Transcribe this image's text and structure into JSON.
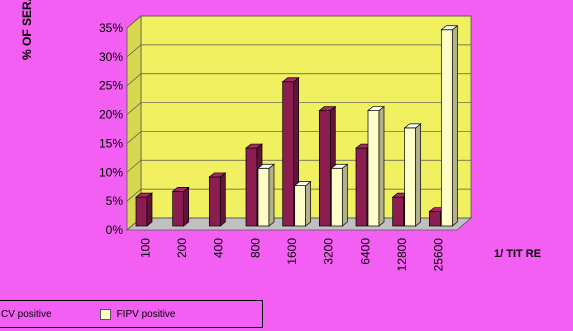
{
  "chart_data": {
    "type": "bar",
    "categories": [
      "100",
      "200",
      "400",
      "800",
      "1600",
      "3200",
      "6400",
      "12800",
      "25600"
    ],
    "series": [
      {
        "name": "FCV positive",
        "values": [
          5,
          6,
          8.5,
          13.5,
          25,
          20,
          13.5,
          5,
          2.5
        ],
        "color": "#8b1d50"
      },
      {
        "name": "FIPV positive",
        "values": [
          0,
          0,
          0,
          10,
          7,
          10,
          20,
          17,
          34
        ],
        "color": "#fffdc8"
      }
    ],
    "y_ticks": [
      "0%",
      "5%",
      "10%",
      "15%",
      "20%",
      "25%",
      "30%",
      "35%"
    ],
    "ylim": [
      0,
      35
    ],
    "ylabel": "% OF SERA",
    "xlabel": "1/ TIT RE",
    "legend_labels": [
      "CV positive",
      "FIPV positive"
    ],
    "legend_position": "bottom-left",
    "grid": true
  },
  "colors": {
    "background": "#f35ff3",
    "wall": "#f0f060",
    "floor": "#c0c0c0"
  }
}
